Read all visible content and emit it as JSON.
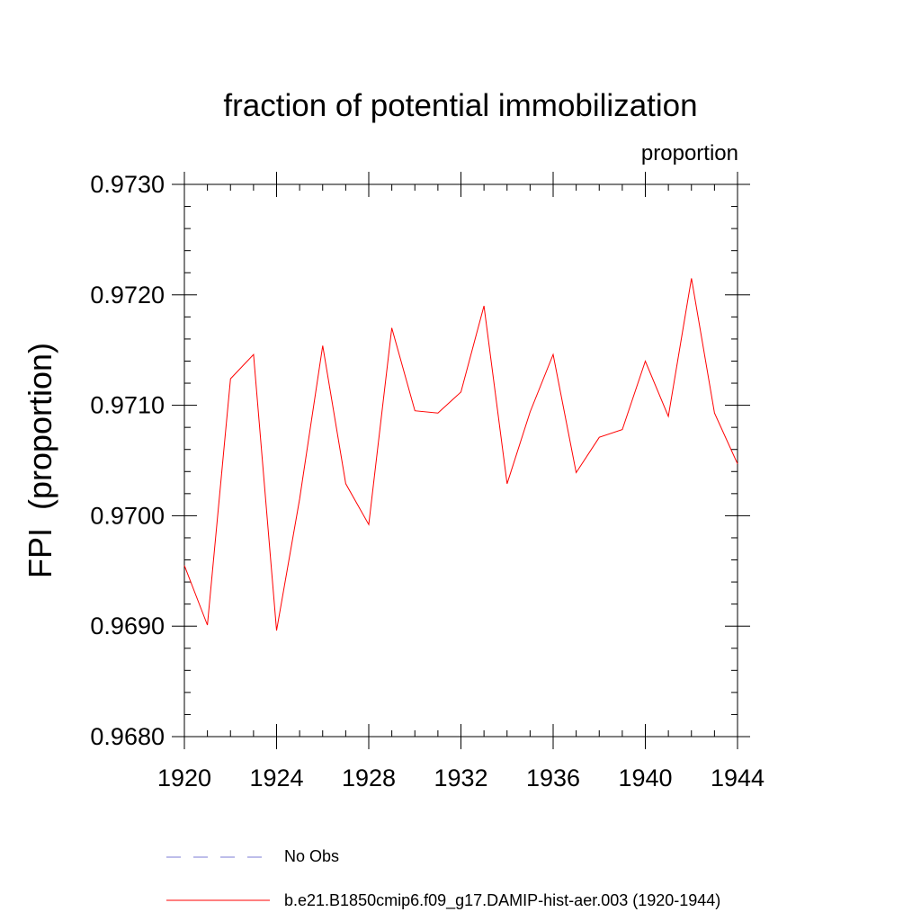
{
  "chart_data": {
    "type": "line",
    "title": "fraction of potential immobilization",
    "subtitle": "proportion",
    "ylabel": "FPI  (proportion)",
    "xlim": [
      1920,
      1944
    ],
    "ylim": [
      0.968,
      0.973
    ],
    "xticks": [
      1920,
      1924,
      1928,
      1932,
      1936,
      1940,
      1944
    ],
    "xtick_labels": [
      "1920",
      "1924",
      "1928",
      "1932",
      "1936",
      "1940",
      "1944"
    ],
    "yticks": [
      0.968,
      0.969,
      0.97,
      0.971,
      0.972,
      0.973
    ],
    "ytick_labels": [
      "0.9680",
      "0.9690",
      "0.9700",
      "0.9710",
      "0.9720",
      "0.9730"
    ],
    "series": [
      {
        "name": "b.e21.B1850cmip6.f09_g17.DAMIP-hist-aer.003 (1920-1944)",
        "color": "#ff0000",
        "x": [
          1920,
          1921,
          1922,
          1923,
          1924,
          1925,
          1926,
          1927,
          1928,
          1929,
          1930,
          1931,
          1932,
          1933,
          1934,
          1935,
          1936,
          1937,
          1938,
          1939,
          1940,
          1941,
          1942,
          1943,
          1944
        ],
        "y": [
          0.96955,
          0.96901,
          0.97124,
          0.97146,
          0.96896,
          0.97015,
          0.97154,
          0.97029,
          0.96992,
          0.9717,
          0.97095,
          0.97093,
          0.97112,
          0.9719,
          0.97029,
          0.97094,
          0.97146,
          0.97039,
          0.97071,
          0.97078,
          0.9714,
          0.9709,
          0.97215,
          0.97093,
          0.97047
        ]
      }
    ],
    "legend": [
      {
        "label": "No Obs",
        "style": "dashed",
        "color": "#7b7bd6"
      },
      {
        "label": "b.e21.B1850cmip6.f09_g17.DAMIP-hist-aer.003 (1920-1944)",
        "style": "solid",
        "color": "#ff0000"
      }
    ],
    "grid": false
  }
}
